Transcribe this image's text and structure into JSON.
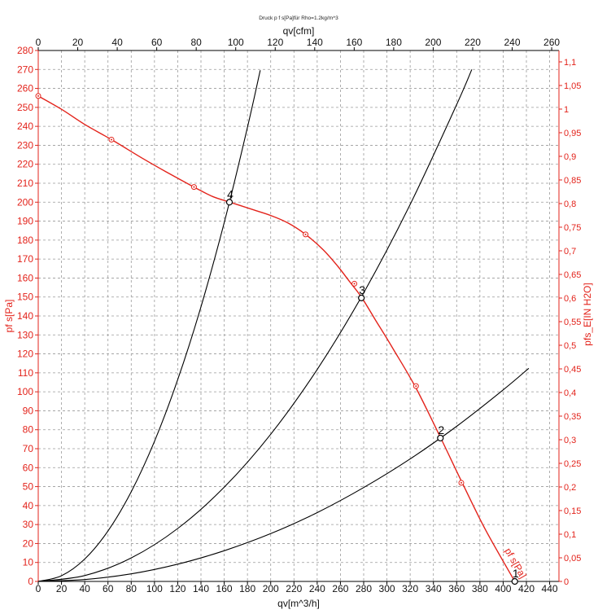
{
  "chart_data": {
    "type": "line",
    "title": "Druck p f s[Pa]für Rho=1.2kg/m^3",
    "xlabel": "qv[m^3/h]",
    "x2label": "qv[cfm]",
    "ylabel": "pf s[Pa]",
    "y2label": "pfs_E[IN H2O]",
    "xlim": [
      0,
      448
    ],
    "ylim": [
      0,
      280
    ],
    "grid": true,
    "x_ticks": [
      0,
      20,
      40,
      60,
      80,
      100,
      120,
      140,
      160,
      180,
      200,
      220,
      240,
      260,
      280,
      300,
      320,
      340,
      360,
      380,
      400,
      420,
      440
    ],
    "x2_ticks": [
      0,
      20,
      40,
      60,
      80,
      100,
      120,
      140,
      160,
      180,
      200,
      220,
      240,
      260
    ],
    "y_ticks": [
      0,
      10,
      20,
      30,
      40,
      50,
      60,
      70,
      80,
      90,
      100,
      110,
      120,
      130,
      140,
      150,
      160,
      170,
      180,
      190,
      200,
      210,
      220,
      230,
      240,
      250,
      260,
      270,
      280
    ],
    "y2_ticks": [
      "0",
      "0,05",
      "0,1",
      "0,15",
      "0,2",
      "0,25",
      "0,3",
      "0,35",
      "0,4",
      "0,45",
      "0,5",
      "0,55",
      "0,6",
      "0,65",
      "0,7",
      "0,75",
      "0,8",
      "0,85",
      "0,9",
      "0,95",
      "1",
      "1,05",
      "1,1"
    ],
    "colors": {
      "fan_curve": "#e3231b",
      "axis_red": "#e3231b",
      "system_curve": "#000000",
      "grid": "#9a9a9a"
    },
    "series": [
      {
        "name": "pf s[Pa]",
        "color": "#e3231b",
        "points": [
          [
            0,
            256
          ],
          [
            20,
            249
          ],
          [
            40,
            241
          ],
          [
            63,
            233
          ],
          [
            90,
            223
          ],
          [
            110,
            216
          ],
          [
            134,
            208
          ],
          [
            150,
            203
          ],
          [
            165,
            200
          ],
          [
            185,
            196
          ],
          [
            200,
            193
          ],
          [
            215,
            189
          ],
          [
            230,
            183
          ],
          [
            245,
            175
          ],
          [
            258,
            166
          ],
          [
            268,
            158
          ],
          [
            278,
            150
          ],
          [
            290,
            138
          ],
          [
            305,
            123
          ],
          [
            325,
            102
          ],
          [
            346,
            76
          ],
          [
            364,
            53
          ],
          [
            385,
            27
          ],
          [
            410,
            0
          ]
        ],
        "markers": [
          [
            0,
            256
          ],
          [
            63,
            233
          ],
          [
            134,
            208
          ],
          [
            230,
            183
          ],
          [
            272,
            157
          ],
          [
            325,
            103
          ],
          [
            364,
            52
          ]
        ]
      },
      {
        "color": "#000000",
        "points": [
          [
            0,
            0
          ],
          [
            20,
            3
          ],
          [
            40,
            11.8
          ],
          [
            60,
            26.6
          ],
          [
            80,
            47.3
          ],
          [
            100,
            73.9
          ],
          [
            120,
            106.4
          ],
          [
            140,
            144.8
          ],
          [
            160,
            189.2
          ],
          [
            180,
            239.4
          ],
          [
            191,
            269.6
          ]
        ]
      },
      {
        "color": "#000000",
        "points": [
          [
            0,
            0
          ],
          [
            40,
            3.1
          ],
          [
            80,
            12.4
          ],
          [
            120,
            27.9
          ],
          [
            160,
            49.7
          ],
          [
            200,
            77.6
          ],
          [
            240,
            111.8
          ],
          [
            280,
            152.2
          ],
          [
            320,
            198.8
          ],
          [
            360,
            251.5
          ],
          [
            373,
            270
          ]
        ]
      },
      {
        "color": "#000000",
        "points": [
          [
            0,
            0
          ],
          [
            40,
            1
          ],
          [
            80,
            4
          ],
          [
            120,
            9.1
          ],
          [
            160,
            16.2
          ],
          [
            200,
            25.2
          ],
          [
            240,
            36.3
          ],
          [
            280,
            49.5
          ],
          [
            320,
            64.6
          ],
          [
            360,
            81.8
          ],
          [
            400,
            101
          ],
          [
            422,
            112.4
          ]
        ]
      }
    ],
    "operating_points": [
      {
        "label": "1",
        "x": 410,
        "y": 0
      },
      {
        "label": "2",
        "x": 346,
        "y": 75.6
      },
      {
        "label": "3",
        "x": 278,
        "y": 149.5
      },
      {
        "label": "4",
        "x": 164.5,
        "y": 200
      }
    ]
  }
}
